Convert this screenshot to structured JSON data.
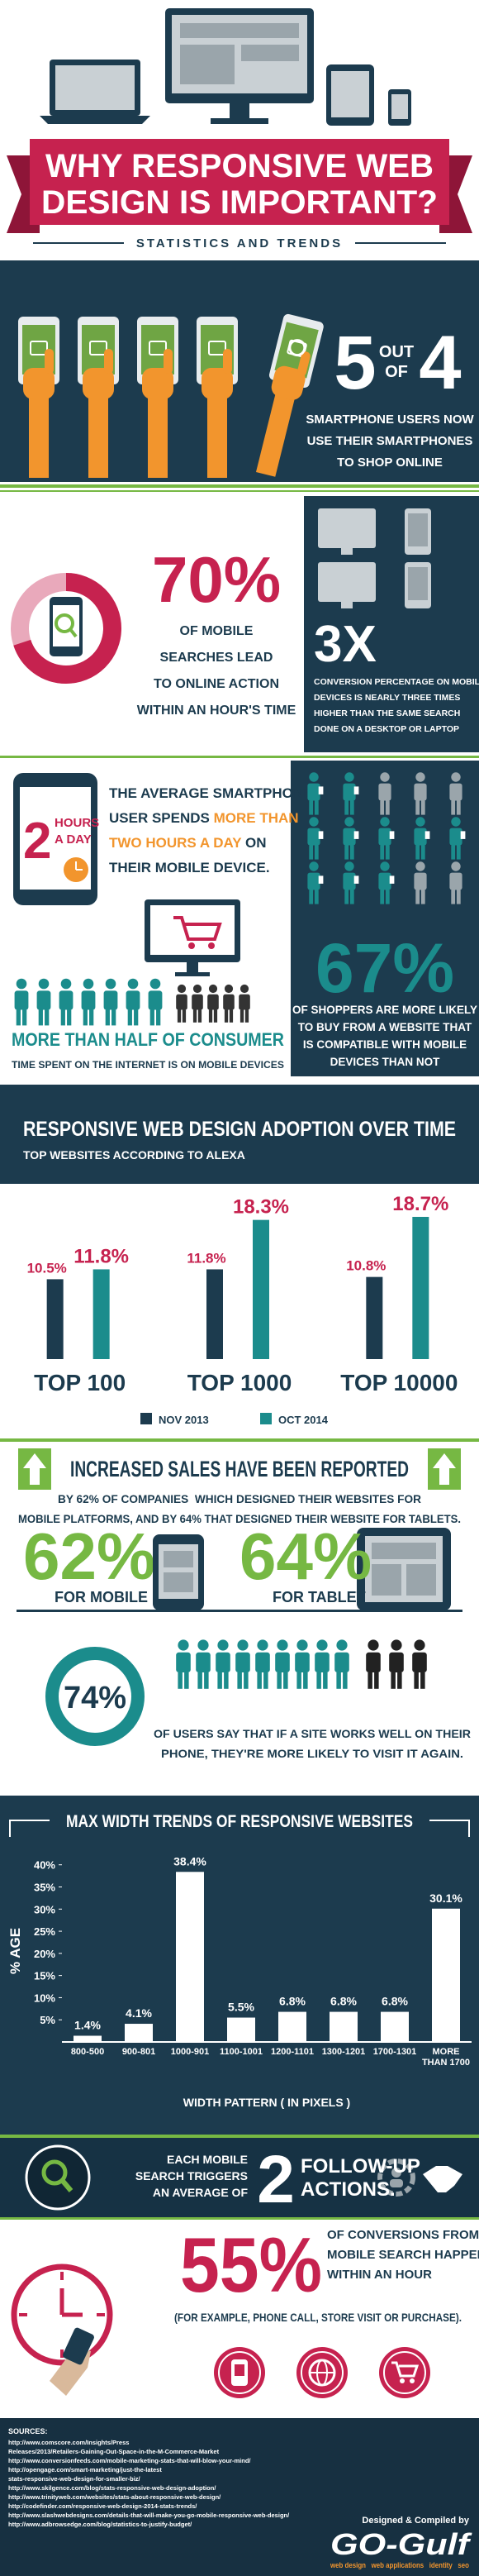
{
  "header": {
    "title_lines": [
      "WHY RESPONSIVE WEB",
      "DESIGN IS IMPORTANT?"
    ],
    "subtitle": "STATISTICS AND TRENDS"
  },
  "shoppers": {
    "big_left": "5",
    "out": "OUT",
    "of": "OF",
    "big_right": "4",
    "lines": [
      "SMARTPHONE USERS NOW",
      "USE THEIR SMARTPHONES",
      "TO SHOP ONLINE"
    ]
  },
  "search_action": {
    "percent": "70%",
    "lines": [
      "OF MOBILE",
      "SEARCHES LEAD",
      "TO ONLINE ACTION",
      "WITHIN AN HOUR'S TIME"
    ]
  },
  "conversion": {
    "big": "3X",
    "lines": [
      "CONVERSION PERCENTAGE ON MOBILE",
      "DEVICES IS NEARLY THREE TIMES",
      "HIGHER THAN THE SAME SEARCH",
      "DONE ON A DESKTOP OR LAPTOP"
    ]
  },
  "time_spent": {
    "badge_number": "2",
    "badge_lines": [
      "HOURS",
      "A DAY"
    ],
    "lines": [
      [
        "THE AVERAGE SMARTPHONE"
      ],
      [
        "USER SPENDS ",
        "MORE THAN"
      ],
      [
        "TWO HOURS A DAY",
        " ON"
      ],
      [
        "THEIR MOBILE DEVICE."
      ]
    ]
  },
  "half_time": {
    "title": "MORE THAN HALF OF CONSUMER",
    "text": "TIME SPENT ON THE INTERNET IS ON MOBILE DEVICES"
  },
  "compatible": {
    "percent": "67%",
    "lines": [
      "OF SHOPPERS ARE MORE LIKELY",
      "TO BUY FROM A WEBSITE THAT",
      "IS COMPATIBLE WITH MOBILE",
      "DEVICES THAN NOT"
    ]
  },
  "sales": {
    "title": "INCREASED SALES HAVE BEEN REPORTED",
    "lines": [
      "BY 62% OF COMPANIES  WHICH DESIGNED THEIR WEBSITES FOR",
      "MOBILE PLATFORMS, AND BY 64% THAT DESIGNED THEIR WEBSITE FOR TABLETS."
    ],
    "mobile_percent": "62%",
    "mobile_label": "FOR MOBILE",
    "tablet_percent": "64%",
    "tablet_label": "FOR TABLET"
  },
  "revisit": {
    "percent": "74%",
    "lines": [
      "OF USERS SAY THAT IF A SITE WORKS WELL ON THEIR",
      "PHONE, THEY'RE MORE LIKELY TO VISIT IT AGAIN."
    ]
  },
  "follow_up": {
    "left_lines": [
      "EACH MOBILE",
      "SEARCH TRIGGERS",
      "AN AVERAGE OF"
    ],
    "number": "2",
    "right_lines": [
      "FOLLOW-UP",
      "ACTIONS."
    ]
  },
  "conversions_hour": {
    "percent": "55%",
    "lines": [
      "OF CONVERSIONS FROM",
      "MOBILE SEARCH HAPPEN",
      "WITHIN AN HOUR"
    ],
    "note": "(FOR EXAMPLE, PHONE CALL, STORE VISIT OR PURCHASE)."
  },
  "footer": {
    "sources_title": "SOURCES:",
    "sources": [
      "http://www.comscore.com/Insights/Press",
      "Releases/2013/Retailers-Gaining-Out-Space-in-the-M-Commerce-Market",
      "http://www.conversionfeeds.com/mobile-marketing-stats-that-will-blow-your-mind/",
      "http://opengage.com/smart-marketing/just-the-latest",
      "stats-responsive-web-design-for-smaller-biz/",
      "http://www.skilgence.com/blog/stats-responsive-web-design-adoption/",
      "http://www.trinityweb.com/websites/stats-about-responsive-web-design/",
      "http://codefinder.com/responsive-web-design-2014-stats-trends/",
      "http://www.slashwebdesigns.com/details-that-will-make-you-go-mobile-responsive-web-design/",
      "http://www.adbrowsedge.com/blog/statistics-to-justify-budget/"
    ],
    "credit": "Designed & Compiled by",
    "brand": "GO-Gulf",
    "tagline": "web design   web applications   identity   seo"
  },
  "chart_data": [
    {
      "type": "bar",
      "title": "RESPONSIVE WEB DESIGN ADOPTION OVER TIME",
      "subtitle": "TOP WEBSITES ACCORDING TO ALEXA",
      "categories": [
        "TOP 100",
        "TOP 1000",
        "TOP 10000"
      ],
      "series": [
        {
          "name": "NOV 2013",
          "color": "#1c3b4e",
          "values": [
            10.5,
            11.8,
            10.8
          ],
          "value_labels": [
            "10.5%",
            "11.8%",
            "10.8%"
          ]
        },
        {
          "name": "OCT 2014",
          "color": "#1b8c8c",
          "values": [
            11.8,
            18.3,
            18.7
          ],
          "value_labels": [
            "11.8%",
            "18.3%",
            "18.7%"
          ]
        }
      ],
      "ylim": [
        0,
        20
      ],
      "legend": "bottom"
    },
    {
      "type": "bar",
      "title": "MAX WIDTH TRENDS OF RESPONSIVE WEBSITES",
      "ylabel": "% AGE",
      "xlabel": "WIDTH PATTERN ( IN PIXELS )",
      "categories": [
        "800-500",
        "900-801",
        "1000-901",
        "1100-1001",
        "1200-1101",
        "1300-1201",
        "1700-1301",
        "MORE THAN 1700"
      ],
      "values": [
        1.4,
        4.1,
        38.4,
        5.5,
        6.8,
        6.8,
        6.8,
        30.1
      ],
      "value_labels": [
        "1.4%",
        "4.1%",
        "38.4%",
        "5.5%",
        "6.8%",
        "6.8%",
        "6.8%",
        "30.1%"
      ],
      "color": "#ffffff",
      "ylim": [
        0,
        42
      ],
      "yticks": [
        {
          "value": 5,
          "label": "5%"
        },
        {
          "value": 10,
          "label": "10%"
        },
        {
          "value": 15,
          "label": "15%"
        },
        {
          "value": 20,
          "label": "20%"
        },
        {
          "value": 25,
          "label": "25%"
        },
        {
          "value": 30,
          "label": "30%"
        },
        {
          "value": 35,
          "label": "35%"
        },
        {
          "value": 40,
          "label": "40%"
        }
      ]
    }
  ]
}
